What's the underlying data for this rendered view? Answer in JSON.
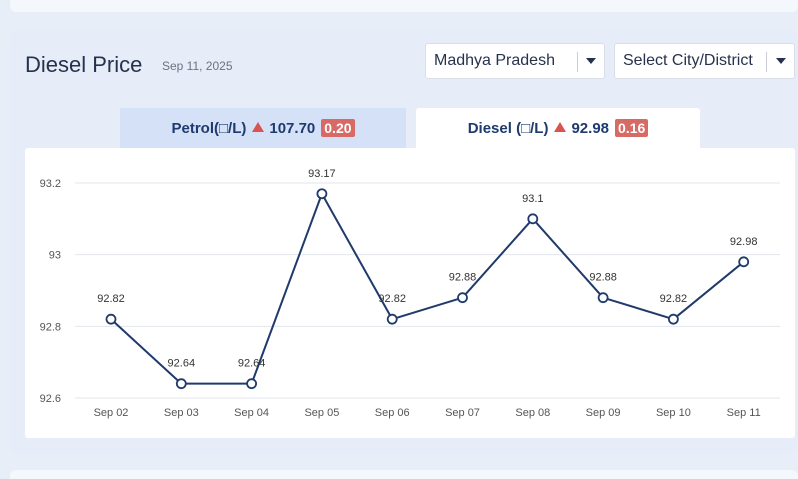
{
  "header": {
    "title": "Diesel Price",
    "date": "Sep 11, 2025"
  },
  "filters": {
    "state": "Madhya Pradesh",
    "city": "Select City/District"
  },
  "tabs": {
    "petrol": {
      "label": "Petrol(□/L)",
      "price": "107.70",
      "change": "0.20"
    },
    "diesel": {
      "label": "Diesel (□/L)",
      "price": "92.98",
      "change": "0.16"
    }
  },
  "icons": {
    "change_up": "triangle-up-icon",
    "dropdown": "chevron-down-icon"
  },
  "colors": {
    "line": "#1f3a6b",
    "increase_badge": "#d86a66",
    "increase_arrow": "#d9534f",
    "active_tab": "#ffffff",
    "inactive_tab": "#d4e1f7"
  },
  "chart_data": {
    "type": "line",
    "categories": [
      "Sep 02",
      "Sep 03",
      "Sep 04",
      "Sep 05",
      "Sep 06",
      "Sep 07",
      "Sep 08",
      "Sep 09",
      "Sep 10",
      "Sep 11"
    ],
    "values": [
      92.82,
      92.64,
      92.64,
      93.17,
      92.82,
      92.88,
      93.1,
      92.88,
      92.82,
      92.98
    ],
    "value_labels": [
      "92.82",
      "92.64",
      "92.64",
      "93.17",
      "92.82",
      "92.88",
      "93.1",
      "92.88",
      "92.82",
      "92.98"
    ],
    "y_ticks": [
      92.6,
      92.8,
      93,
      93.2
    ],
    "y_tick_labels": [
      "92.6",
      "92.8",
      "93",
      "93.2"
    ],
    "ylim": [
      92.6,
      93.2
    ],
    "grid": true,
    "title": "",
    "xlabel": "",
    "ylabel": ""
  }
}
